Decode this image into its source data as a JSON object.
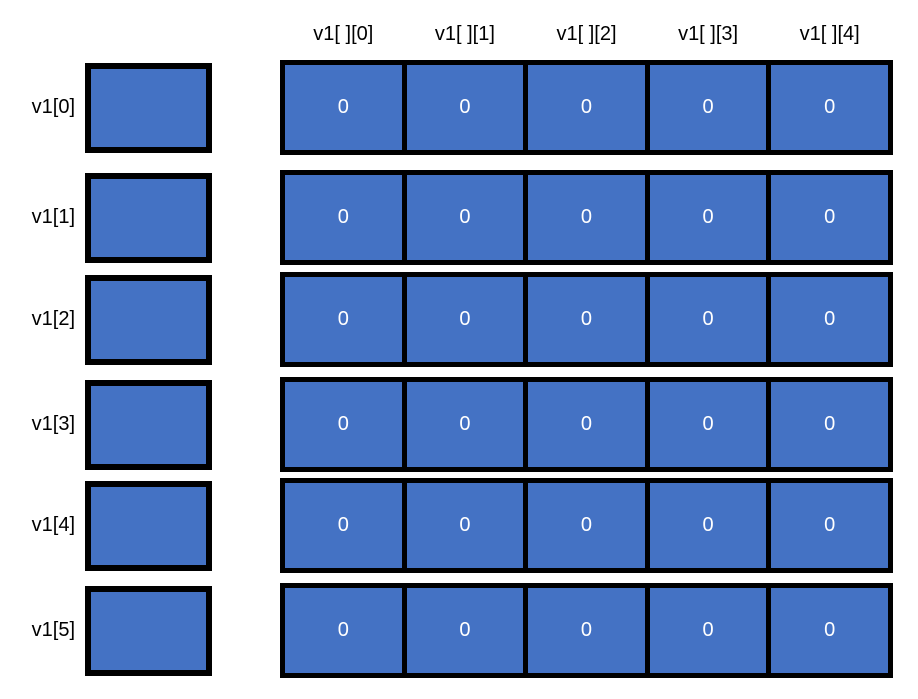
{
  "diagram": {
    "colors": {
      "background": "#FFFFFF",
      "cell_fill": "#4472C4",
      "border": "#000000",
      "cell_text": "#FFFFFF",
      "label_text": "#000000"
    },
    "column_headers": [
      "v1[ ][0]",
      "v1[ ][1]",
      "v1[ ][2]",
      "v1[ ][3]",
      "v1[ ][4]"
    ],
    "rows": [
      {
        "label": "v1[0]",
        "cells": [
          "0",
          "0",
          "0",
          "0",
          "0"
        ]
      },
      {
        "label": "v1[1]",
        "cells": [
          "0",
          "0",
          "0",
          "0",
          "0"
        ]
      },
      {
        "label": "v1[2]",
        "cells": [
          "0",
          "0",
          "0",
          "0",
          "0"
        ]
      },
      {
        "label": "v1[3]",
        "cells": [
          "0",
          "0",
          "0",
          "0",
          "0"
        ]
      },
      {
        "label": "v1[4]",
        "cells": [
          "0",
          "0",
          "0",
          "0",
          "0"
        ]
      },
      {
        "label": "v1[5]",
        "cells": [
          "0",
          "0",
          "0",
          "0",
          "0"
        ]
      }
    ]
  }
}
